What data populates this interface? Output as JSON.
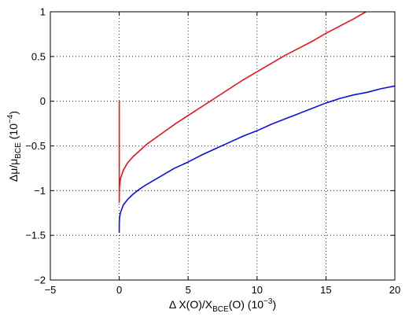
{
  "chart_data": {
    "type": "line",
    "title": "",
    "xlabel": {
      "main": "Δ X(O)/X",
      "sub": "BCE",
      "tail": "(O) (10",
      "sup": "−3",
      "end": ")"
    },
    "ylabel": {
      "main": "Δμ/μ",
      "sub": "BCE",
      "tail": " (10",
      "sup": "−4",
      "end": ")"
    },
    "xlim": [
      -5,
      20
    ],
    "ylim": [
      -2,
      1
    ],
    "xticks": [
      -5,
      0,
      5,
      10,
      15,
      20
    ],
    "yticks": [
      -2,
      -1.5,
      -1,
      -0.5,
      0,
      0.5,
      1
    ],
    "xtick_labels": [
      "−5",
      "0",
      "5",
      "10",
      "15",
      "20"
    ],
    "ytick_labels": [
      "−2",
      "−1.5",
      "−1",
      "−0.5",
      "0",
      "0.5",
      "1"
    ],
    "grid": true,
    "grid_style": "dotted",
    "series": [
      {
        "color": "#e8141b",
        "x": [
          0,
          0,
          0.002,
          0.02,
          0.1,
          0.3,
          0.6,
          1,
          1.5,
          2,
          3,
          4,
          5,
          6,
          7,
          8,
          9,
          10,
          11,
          12,
          13,
          14,
          15,
          16,
          17,
          17.9
        ],
        "y": [
          0.0,
          -1.13,
          -1.02,
          -0.95,
          -0.86,
          -0.77,
          -0.69,
          -0.62,
          -0.55,
          -0.48,
          -0.37,
          -0.26,
          -0.16,
          -0.06,
          0.04,
          0.14,
          0.24,
          0.33,
          0.42,
          0.51,
          0.59,
          0.67,
          0.76,
          0.84,
          0.92,
          1.0
        ]
      },
      {
        "color": "#0d0ee0",
        "x": [
          0,
          0.002,
          0.02,
          0.1,
          0.3,
          0.6,
          1,
          1.5,
          2,
          3,
          4,
          5,
          6,
          7,
          8,
          9,
          10,
          11,
          12,
          13,
          14,
          15,
          16,
          17,
          18,
          19,
          20
        ],
        "y": [
          -1.47,
          -1.36,
          -1.3,
          -1.24,
          -1.16,
          -1.1,
          -1.04,
          -0.98,
          -0.93,
          -0.84,
          -0.75,
          -0.68,
          -0.6,
          -0.53,
          -0.46,
          -0.39,
          -0.33,
          -0.26,
          -0.2,
          -0.14,
          -0.08,
          -0.02,
          0.03,
          0.07,
          0.1,
          0.14,
          0.17
        ]
      }
    ]
  }
}
